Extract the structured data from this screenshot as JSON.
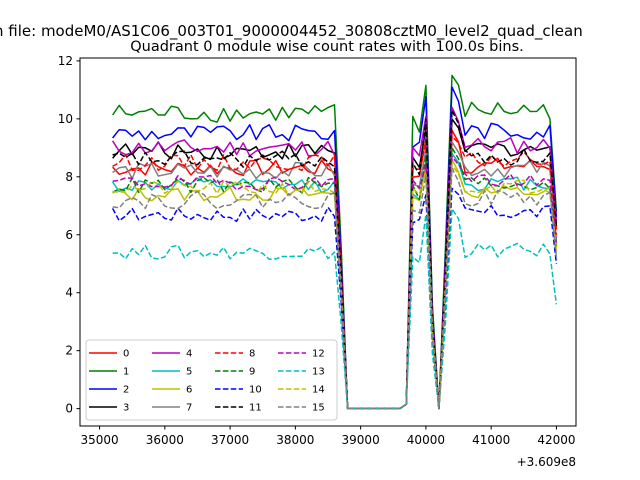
{
  "figure": {
    "suptitle": "n file: modeM0/AS1C06_003T01_9000004452_30808cztM0_level2_quad_clean",
    "x_offset_label": "+3.609e8"
  },
  "colors": {
    "0": "#ff0000",
    "1": "#008000",
    "2": "#0000ff",
    "3": "#000000",
    "4": "#bf00bf",
    "5": "#00bfbf",
    "6": "#bfbf00",
    "7": "#808080",
    "8": "#ff0000",
    "9": "#008000",
    "10": "#0000ff",
    "11": "#000000",
    "12": "#bf00bf",
    "13": "#00bfbf",
    "14": "#bfbf00",
    "15": "#808080"
  },
  "chart_data": {
    "type": "line",
    "title": "Quadrant 0 module wise count rates with 100.0s bins.",
    "xlabel": "",
    "ylabel": "",
    "xlim": [
      34700,
      42300
    ],
    "ylim": [
      -0.6,
      12.1
    ],
    "xticks": [
      35000,
      36000,
      37000,
      38000,
      39000,
      40000,
      41000,
      42000
    ],
    "yticks": [
      0,
      2,
      4,
      6,
      8,
      10,
      12
    ],
    "grid": false,
    "legend": {
      "location": "lower left",
      "columns": 4
    },
    "series": [
      {
        "name": "0",
        "style": "solid",
        "level": 8.3,
        "jitter": 0.28,
        "peak": 9.6,
        "end": 6.2
      },
      {
        "name": "1",
        "style": "solid",
        "level": 10.2,
        "jitter": 0.32,
        "peak": 11.5,
        "end": 6.8
      },
      {
        "name": "2",
        "style": "solid",
        "level": 9.5,
        "jitter": 0.3,
        "peak": 11.1,
        "end": 6.6
      },
      {
        "name": "3",
        "style": "solid",
        "level": 8.9,
        "jitter": 0.3,
        "peak": 10.0,
        "end": 6.3
      },
      {
        "name": "4",
        "style": "solid",
        "level": 9.0,
        "jitter": 0.3,
        "peak": 10.4,
        "end": 6.4
      },
      {
        "name": "5",
        "style": "solid",
        "level": 7.7,
        "jitter": 0.25,
        "peak": 8.8,
        "end": 5.6
      },
      {
        "name": "6",
        "style": "solid",
        "level": 7.4,
        "jitter": 0.25,
        "peak": 8.6,
        "end": 5.4
      },
      {
        "name": "7",
        "style": "solid",
        "level": 8.2,
        "jitter": 0.3,
        "peak": 9.2,
        "end": 5.8
      },
      {
        "name": "8",
        "style": "dashed",
        "level": 8.5,
        "jitter": 0.28,
        "peak": 9.4,
        "end": 6.0
      },
      {
        "name": "9",
        "style": "dashed",
        "level": 7.7,
        "jitter": 0.28,
        "peak": 9.0,
        "end": 5.6
      },
      {
        "name": "10",
        "style": "dashed",
        "level": 6.7,
        "jitter": 0.25,
        "peak": 7.6,
        "end": 5.0
      },
      {
        "name": "11",
        "style": "dashed",
        "level": 8.6,
        "jitter": 0.3,
        "peak": 10.3,
        "end": 6.3
      },
      {
        "name": "12",
        "style": "dashed",
        "level": 7.8,
        "jitter": 0.25,
        "peak": 8.7,
        "end": 5.7
      },
      {
        "name": "13",
        "style": "dashed",
        "level": 5.4,
        "jitter": 0.25,
        "peak": 6.9,
        "end": 3.6
      },
      {
        "name": "14",
        "style": "dashed",
        "level": 7.6,
        "jitter": 0.25,
        "peak": 8.4,
        "end": 5.5
      },
      {
        "name": "15",
        "style": "dashed",
        "level": 7.2,
        "jitter": 0.3,
        "peak": 8.3,
        "end": 5.2
      }
    ]
  }
}
